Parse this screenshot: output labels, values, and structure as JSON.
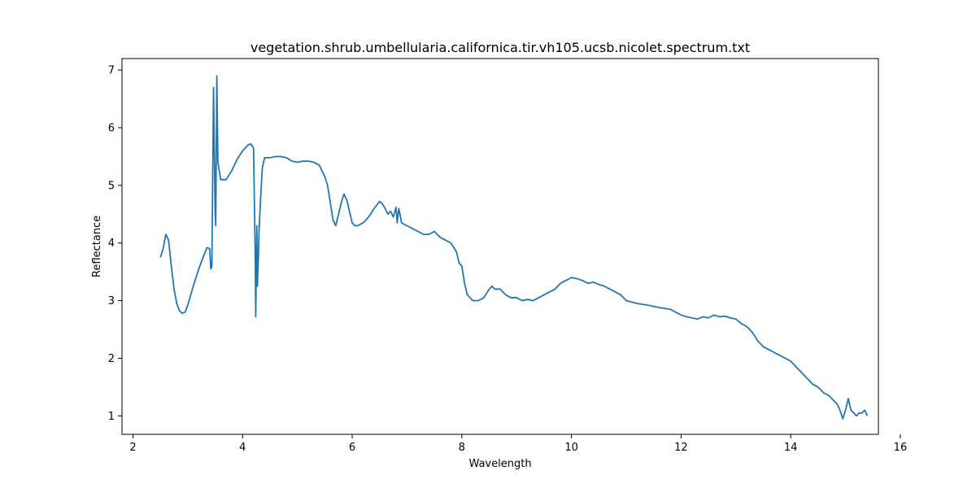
{
  "chart_data": {
    "type": "line",
    "title": "vegetation.shrub.umbellularia.californica.tir.vh105.ucsb.nicolet.spectrum.txt",
    "xlabel": "Wavelength",
    "ylabel": "Reflectance",
    "xlim": [
      1.8,
      15.6
    ],
    "ylim": [
      0.68,
      7.2
    ],
    "xticks": [
      2,
      4,
      6,
      8,
      10,
      12,
      14,
      16
    ],
    "yticks": [
      1,
      2,
      3,
      4,
      5,
      6,
      7
    ],
    "grid": false,
    "legend": "none",
    "series": [
      {
        "color": "#1f77b4",
        "x": [
          2.5,
          2.55,
          2.6,
          2.65,
          2.7,
          2.75,
          2.8,
          2.85,
          2.9,
          2.95,
          3.0,
          3.1,
          3.2,
          3.3,
          3.35,
          3.4,
          3.42,
          3.44,
          3.47,
          3.5,
          3.51,
          3.53,
          3.55,
          3.6,
          3.7,
          3.8,
          3.9,
          4.0,
          4.1,
          4.15,
          4.2,
          4.23,
          4.24,
          4.25,
          4.26,
          4.27,
          4.29,
          4.3,
          4.33,
          4.36,
          4.4,
          4.5,
          4.6,
          4.7,
          4.8,
          4.9,
          5.0,
          5.1,
          5.2,
          5.3,
          5.4,
          5.5,
          5.55,
          5.6,
          5.65,
          5.7,
          5.75,
          5.8,
          5.85,
          5.9,
          5.95,
          6.0,
          6.05,
          6.1,
          6.2,
          6.3,
          6.4,
          6.5,
          6.55,
          6.6,
          6.65,
          6.7,
          6.75,
          6.8,
          6.82,
          6.85,
          6.9,
          7.0,
          7.1,
          7.2,
          7.3,
          7.4,
          7.5,
          7.6,
          7.7,
          7.8,
          7.9,
          7.95,
          8.0,
          8.05,
          8.1,
          8.15,
          8.2,
          8.3,
          8.4,
          8.5,
          8.55,
          8.6,
          8.7,
          8.8,
          8.9,
          9.0,
          9.1,
          9.2,
          9.3,
          9.4,
          9.5,
          9.6,
          9.7,
          9.8,
          9.9,
          10.0,
          10.1,
          10.2,
          10.3,
          10.4,
          10.5,
          10.6,
          10.7,
          10.8,
          10.9,
          11.0,
          11.2,
          11.4,
          11.6,
          11.8,
          12.0,
          12.1,
          12.2,
          12.3,
          12.4,
          12.5,
          12.6,
          12.7,
          12.8,
          12.9,
          13.0,
          13.1,
          13.2,
          13.3,
          13.4,
          13.5,
          13.6,
          13.7,
          13.8,
          13.9,
          14.0,
          14.1,
          14.2,
          14.3,
          14.4,
          14.5,
          14.6,
          14.7,
          14.8,
          14.85,
          14.9,
          14.95,
          15.0,
          15.05,
          15.1,
          15.15,
          15.2,
          15.25,
          15.3,
          15.35,
          15.4
        ],
        "y": [
          3.75,
          3.9,
          4.15,
          4.05,
          3.6,
          3.2,
          2.95,
          2.82,
          2.78,
          2.8,
          2.92,
          3.25,
          3.55,
          3.8,
          3.92,
          3.9,
          3.55,
          3.6,
          6.7,
          4.5,
          4.3,
          6.9,
          5.4,
          5.1,
          5.1,
          5.25,
          5.45,
          5.6,
          5.7,
          5.72,
          5.65,
          3.8,
          2.72,
          3.5,
          4.3,
          3.25,
          3.8,
          4.2,
          4.8,
          5.3,
          5.48,
          5.48,
          5.5,
          5.5,
          5.48,
          5.42,
          5.4,
          5.42,
          5.42,
          5.4,
          5.35,
          5.15,
          5.0,
          4.7,
          4.4,
          4.3,
          4.5,
          4.7,
          4.85,
          4.75,
          4.55,
          4.35,
          4.3,
          4.3,
          4.35,
          4.45,
          4.6,
          4.72,
          4.68,
          4.6,
          4.5,
          4.55,
          4.45,
          4.62,
          4.35,
          4.6,
          4.35,
          4.3,
          4.25,
          4.2,
          4.15,
          4.15,
          4.2,
          4.1,
          4.05,
          4.0,
          3.85,
          3.65,
          3.6,
          3.3,
          3.1,
          3.05,
          3.0,
          3.0,
          3.05,
          3.2,
          3.25,
          3.2,
          3.2,
          3.1,
          3.05,
          3.05,
          3.0,
          3.02,
          3.0,
          3.05,
          3.1,
          3.15,
          3.2,
          3.3,
          3.35,
          3.4,
          3.38,
          3.35,
          3.3,
          3.32,
          3.28,
          3.25,
          3.2,
          3.15,
          3.1,
          3.0,
          2.95,
          2.92,
          2.88,
          2.85,
          2.75,
          2.72,
          2.7,
          2.68,
          2.72,
          2.7,
          2.75,
          2.72,
          2.73,
          2.7,
          2.68,
          2.6,
          2.55,
          2.45,
          2.3,
          2.2,
          2.15,
          2.1,
          2.05,
          2.0,
          1.95,
          1.85,
          1.75,
          1.65,
          1.55,
          1.5,
          1.4,
          1.35,
          1.25,
          1.2,
          1.1,
          0.95,
          1.1,
          1.3,
          1.1,
          1.05,
          1.0,
          1.05,
          1.05,
          1.1,
          1.0
        ]
      }
    ]
  }
}
